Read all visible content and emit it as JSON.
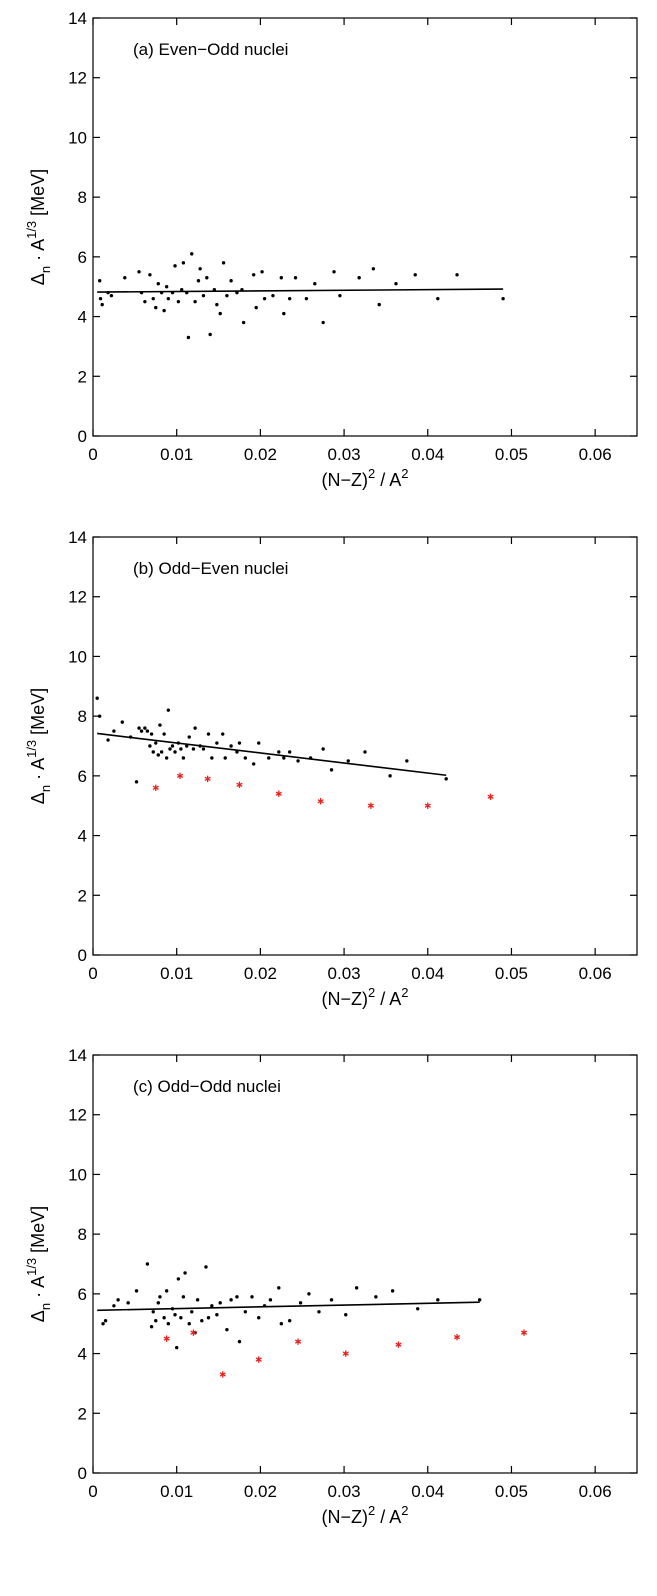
{
  "chart_data": [
    {
      "type": "scatter",
      "title": "(a) Even−Odd nuclei",
      "xlabel_parts": [
        "(N−Z)",
        "2",
        " / A",
        "2"
      ],
      "ylabel_parts": [
        "Δ",
        "n",
        " · A",
        "1/3",
        " [MeV]"
      ],
      "xlim": [
        0,
        0.065
      ],
      "ylim": [
        0,
        14
      ],
      "xticks": [
        "0",
        "0.01",
        "0.02",
        "0.03",
        "0.04",
        "0.05",
        "0.06"
      ],
      "yticks": [
        "0",
        "2",
        "4",
        "6",
        "8",
        "10",
        "12",
        "14"
      ],
      "xtick_values": [
        0,
        0.01,
        0.02,
        0.03,
        0.04,
        0.05,
        0.06
      ],
      "ytick_values": [
        0,
        2,
        4,
        6,
        8,
        10,
        12,
        14
      ],
      "series": [
        {
          "marker": "dot",
          "color": "#000000",
          "points": [
            [
              0.0008,
              5.2
            ],
            [
              0.0009,
              4.6
            ],
            [
              0.0011,
              4.4
            ],
            [
              0.0018,
              4.8
            ],
            [
              0.0022,
              4.7
            ],
            [
              0.0038,
              5.3
            ],
            [
              0.0055,
              5.5
            ],
            [
              0.0058,
              4.8
            ],
            [
              0.0062,
              4.5
            ],
            [
              0.0068,
              5.4
            ],
            [
              0.0072,
              4.6
            ],
            [
              0.0075,
              4.3
            ],
            [
              0.0078,
              5.1
            ],
            [
              0.0082,
              4.8
            ],
            [
              0.0085,
              4.2
            ],
            [
              0.0088,
              5.0
            ],
            [
              0.009,
              4.6
            ],
            [
              0.0095,
              4.8
            ],
            [
              0.0098,
              5.7
            ],
            [
              0.0102,
              4.5
            ],
            [
              0.0106,
              4.9
            ],
            [
              0.0108,
              5.8
            ],
            [
              0.0112,
              4.8
            ],
            [
              0.0114,
              3.3
            ],
            [
              0.0118,
              6.1
            ],
            [
              0.0122,
              4.5
            ],
            [
              0.0126,
              5.2
            ],
            [
              0.0128,
              5.6
            ],
            [
              0.0132,
              4.7
            ],
            [
              0.0136,
              5.3
            ],
            [
              0.014,
              3.4
            ],
            [
              0.0145,
              4.9
            ],
            [
              0.0148,
              4.4
            ],
            [
              0.0152,
              4.1
            ],
            [
              0.0156,
              5.8
            ],
            [
              0.016,
              4.7
            ],
            [
              0.0165,
              5.2
            ],
            [
              0.0172,
              4.8
            ],
            [
              0.0178,
              4.9
            ],
            [
              0.018,
              3.8
            ],
            [
              0.0192,
              5.4
            ],
            [
              0.0195,
              4.3
            ],
            [
              0.0202,
              5.5
            ],
            [
              0.0205,
              4.6
            ],
            [
              0.0215,
              4.7
            ],
            [
              0.0225,
              5.3
            ],
            [
              0.0228,
              4.1
            ],
            [
              0.0235,
              4.6
            ],
            [
              0.0242,
              5.3
            ],
            [
              0.0255,
              4.6
            ],
            [
              0.0265,
              5.1
            ],
            [
              0.0275,
              3.8
            ],
            [
              0.0288,
              5.5
            ],
            [
              0.0295,
              4.7
            ],
            [
              0.0318,
              5.3
            ],
            [
              0.0335,
              5.6
            ],
            [
              0.0342,
              4.4
            ],
            [
              0.0362,
              5.1
            ],
            [
              0.0385,
              5.4
            ],
            [
              0.0412,
              4.6
            ],
            [
              0.0435,
              5.4
            ],
            [
              0.049,
              4.6
            ]
          ]
        }
      ],
      "fit_line": [
        [
          0.0005,
          4.82
        ],
        [
          0.049,
          4.92
        ]
      ]
    },
    {
      "type": "scatter",
      "title": "(b) Odd−Even nuclei",
      "xlabel_parts": [
        "(N−Z)",
        "2",
        " / A",
        "2"
      ],
      "ylabel_parts": [
        "Δ",
        "n",
        " · A",
        "1/3",
        " [MeV]"
      ],
      "xlim": [
        0,
        0.065
      ],
      "ylim": [
        0,
        14
      ],
      "xticks": [
        "0",
        "0.01",
        "0.02",
        "0.03",
        "0.04",
        "0.05",
        "0.06"
      ],
      "yticks": [
        "0",
        "2",
        "4",
        "6",
        "8",
        "10",
        "12",
        "14"
      ],
      "xtick_values": [
        0,
        0.01,
        0.02,
        0.03,
        0.04,
        0.05,
        0.06
      ],
      "ytick_values": [
        0,
        2,
        4,
        6,
        8,
        10,
        12,
        14
      ],
      "series": [
        {
          "marker": "dot",
          "color": "#000000",
          "points": [
            [
              0.0005,
              8.6
            ],
            [
              0.0008,
              8.0
            ],
            [
              0.0018,
              7.2
            ],
            [
              0.0025,
              7.5
            ],
            [
              0.0035,
              7.8
            ],
            [
              0.0045,
              7.3
            ],
            [
              0.0052,
              5.8
            ],
            [
              0.0055,
              7.6
            ],
            [
              0.0058,
              7.5
            ],
            [
              0.0062,
              7.6
            ],
            [
              0.0065,
              7.5
            ],
            [
              0.0068,
              7.0
            ],
            [
              0.007,
              7.4
            ],
            [
              0.0072,
              6.8
            ],
            [
              0.0075,
              7.1
            ],
            [
              0.0078,
              6.7
            ],
            [
              0.008,
              7.7
            ],
            [
              0.0082,
              6.8
            ],
            [
              0.0085,
              7.4
            ],
            [
              0.0088,
              6.6
            ],
            [
              0.009,
              8.2
            ],
            [
              0.0092,
              6.9
            ],
            [
              0.0095,
              7.0
            ],
            [
              0.0098,
              6.8
            ],
            [
              0.0102,
              7.1
            ],
            [
              0.0105,
              6.9
            ],
            [
              0.0108,
              6.6
            ],
            [
              0.0112,
              7.0
            ],
            [
              0.0115,
              7.3
            ],
            [
              0.012,
              6.9
            ],
            [
              0.0122,
              7.6
            ],
            [
              0.0128,
              7.0
            ],
            [
              0.0132,
              6.9
            ],
            [
              0.0138,
              7.4
            ],
            [
              0.0142,
              6.6
            ],
            [
              0.0148,
              7.1
            ],
            [
              0.0155,
              7.4
            ],
            [
              0.0158,
              6.6
            ],
            [
              0.0165,
              7.0
            ],
            [
              0.0172,
              6.8
            ],
            [
              0.0175,
              7.1
            ],
            [
              0.0182,
              6.6
            ],
            [
              0.0192,
              6.4
            ],
            [
              0.0198,
              7.1
            ],
            [
              0.021,
              6.6
            ],
            [
              0.0222,
              6.8
            ],
            [
              0.0228,
              6.6
            ],
            [
              0.0235,
              6.8
            ],
            [
              0.0245,
              6.5
            ],
            [
              0.026,
              6.6
            ],
            [
              0.0275,
              6.9
            ],
            [
              0.0285,
              6.2
            ],
            [
              0.0305,
              6.5
            ],
            [
              0.0325,
              6.8
            ],
            [
              0.0355,
              6.0
            ],
            [
              0.0375,
              6.5
            ],
            [
              0.0422,
              5.9
            ]
          ]
        },
        {
          "marker": "star",
          "color": "#e8201c",
          "points": [
            [
              0.0075,
              5.6
            ],
            [
              0.0104,
              6.0
            ],
            [
              0.0137,
              5.9
            ],
            [
              0.0175,
              5.7
            ],
            [
              0.0222,
              5.4
            ],
            [
              0.0272,
              5.15
            ],
            [
              0.0332,
              5.0
            ],
            [
              0.04,
              5.0
            ],
            [
              0.0475,
              5.3
            ]
          ]
        }
      ],
      "fit_line": [
        [
          0.0005,
          7.42
        ],
        [
          0.0422,
          6.02
        ]
      ]
    },
    {
      "type": "scatter",
      "title": "(c) Odd−Odd nuclei",
      "xlabel_parts": [
        "(N−Z)",
        "2",
        " / A",
        "2"
      ],
      "ylabel_parts": [
        "Δ",
        "n",
        " · A",
        "1/3",
        " [MeV]"
      ],
      "xlim": [
        0,
        0.065
      ],
      "ylim": [
        0,
        14
      ],
      "xticks": [
        "0",
        "0.01",
        "0.02",
        "0.03",
        "0.04",
        "0.05",
        "0.06"
      ],
      "yticks": [
        "0",
        "2",
        "4",
        "6",
        "8",
        "10",
        "12",
        "14"
      ],
      "xtick_values": [
        0,
        0.01,
        0.02,
        0.03,
        0.04,
        0.05,
        0.06
      ],
      "ytick_values": [
        0,
        2,
        4,
        6,
        8,
        10,
        12,
        14
      ],
      "series": [
        {
          "marker": "dot",
          "color": "#000000",
          "points": [
            [
              0.0012,
              5.0
            ],
            [
              0.0015,
              5.1
            ],
            [
              0.0025,
              5.6
            ],
            [
              0.003,
              5.8
            ],
            [
              0.0042,
              5.7
            ],
            [
              0.0052,
              6.1
            ],
            [
              0.0065,
              7.0
            ],
            [
              0.007,
              4.9
            ],
            [
              0.0072,
              5.4
            ],
            [
              0.0075,
              5.1
            ],
            [
              0.0078,
              5.7
            ],
            [
              0.008,
              5.9
            ],
            [
              0.0085,
              5.2
            ],
            [
              0.0088,
              6.1
            ],
            [
              0.009,
              5.0
            ],
            [
              0.0095,
              5.5
            ],
            [
              0.0098,
              5.3
            ],
            [
              0.01,
              4.2
            ],
            [
              0.0102,
              6.5
            ],
            [
              0.0105,
              5.2
            ],
            [
              0.0108,
              5.9
            ],
            [
              0.011,
              6.7
            ],
            [
              0.0115,
              5.0
            ],
            [
              0.0118,
              5.4
            ],
            [
              0.0122,
              4.7
            ],
            [
              0.0125,
              5.8
            ],
            [
              0.013,
              5.1
            ],
            [
              0.0135,
              6.9
            ],
            [
              0.0138,
              5.2
            ],
            [
              0.0142,
              5.6
            ],
            [
              0.0148,
              5.3
            ],
            [
              0.0152,
              5.7
            ],
            [
              0.016,
              4.8
            ],
            [
              0.0165,
              5.8
            ],
            [
              0.0172,
              5.9
            ],
            [
              0.0175,
              4.4
            ],
            [
              0.0182,
              5.4
            ],
            [
              0.019,
              5.9
            ],
            [
              0.0198,
              5.2
            ],
            [
              0.0205,
              5.6
            ],
            [
              0.0212,
              5.8
            ],
            [
              0.0222,
              6.2
            ],
            [
              0.0225,
              5.0
            ],
            [
              0.0235,
              5.1
            ],
            [
              0.0248,
              5.7
            ],
            [
              0.0258,
              6.0
            ],
            [
              0.027,
              5.4
            ],
            [
              0.0285,
              5.8
            ],
            [
              0.0302,
              5.3
            ],
            [
              0.0315,
              6.2
            ],
            [
              0.0338,
              5.9
            ],
            [
              0.0358,
              6.1
            ],
            [
              0.0388,
              5.5
            ],
            [
              0.0412,
              5.8
            ],
            [
              0.0462,
              5.8
            ]
          ]
        },
        {
          "marker": "star",
          "color": "#e8201c",
          "points": [
            [
              0.0088,
              4.5
            ],
            [
              0.012,
              4.7
            ],
            [
              0.0155,
              3.3
            ],
            [
              0.0198,
              3.8
            ],
            [
              0.0245,
              4.4
            ],
            [
              0.0302,
              4.0
            ],
            [
              0.0365,
              4.3
            ],
            [
              0.0435,
              4.55
            ],
            [
              0.0515,
              4.7
            ]
          ]
        }
      ],
      "fit_line": [
        [
          0.0005,
          5.45
        ],
        [
          0.0462,
          5.72
        ]
      ]
    }
  ]
}
